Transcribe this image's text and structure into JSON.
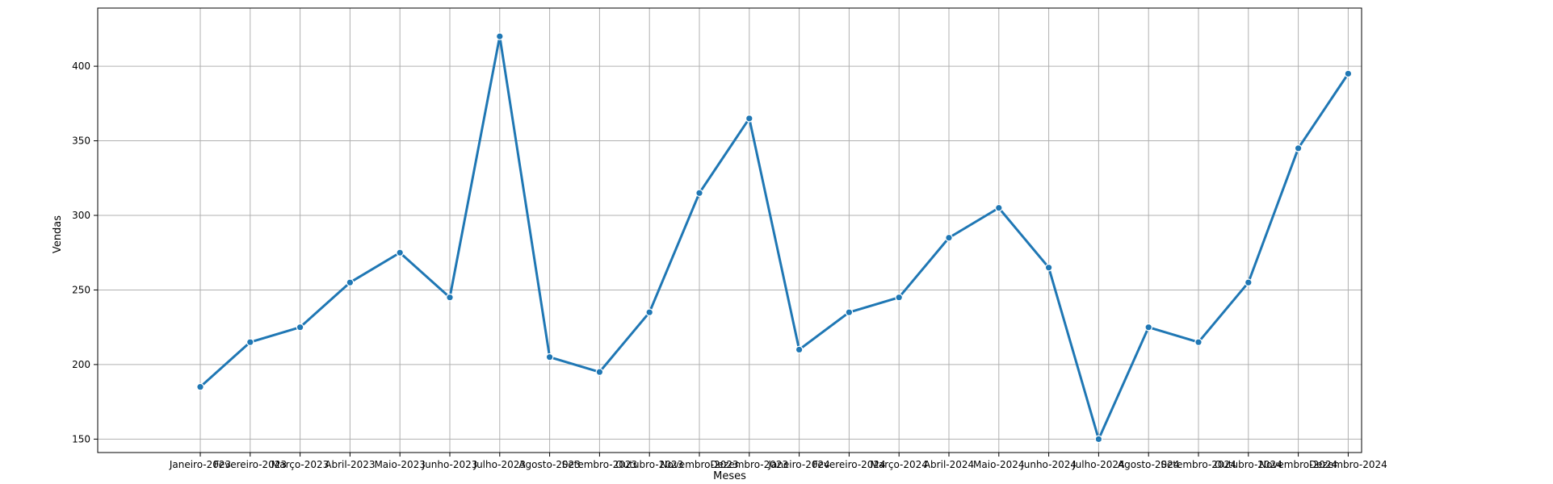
{
  "chart_data": {
    "type": "line",
    "title": "",
    "xlabel": "Meses",
    "ylabel": "Vendas",
    "categories": [
      "Janeiro-2023",
      "Fevereiro-2023",
      "Março-2023",
      "Abril-2023",
      "Maio-2023",
      "Junho-2023",
      "Julho-2023",
      "Agosto-2023",
      "Setembro-2023",
      "Outubro-2023",
      "Novembro-2023",
      "Dezembro-2023",
      "Janeiro-2024",
      "Fevereiro-2024",
      "Março-2024",
      "Abril-2024",
      "Maio-2024",
      "Junho-2024",
      "Julho-2024",
      "Agosto-2024",
      "Setembro-2024",
      "Outubro-2024",
      "Novembro-2024",
      "Dezembro-2024"
    ],
    "series": [
      {
        "values": [
          185,
          215,
          225,
          255,
          275,
          245,
          420,
          205,
          195,
          235,
          315,
          365,
          210,
          235,
          245,
          285,
          305,
          265,
          150,
          225,
          215,
          255,
          345,
          395
        ],
        "color": "#1f77b4",
        "marker": "circle"
      }
    ],
    "yticks": [
      150,
      200,
      250,
      300,
      350,
      400
    ],
    "ylim": [
      141,
      439
    ],
    "grid": true,
    "legend": "none"
  }
}
